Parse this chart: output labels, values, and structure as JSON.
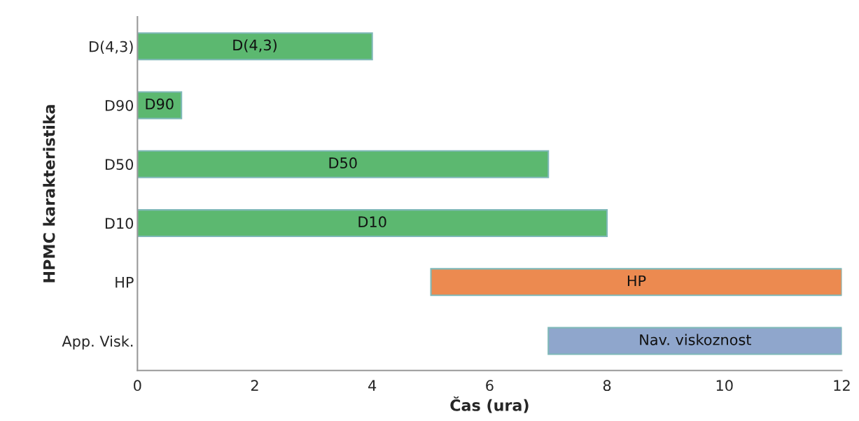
{
  "chart_data": {
    "type": "bar",
    "orientation": "horizontal",
    "xlabel": "Čas (ura)",
    "ylabel": "HPMC karakteristika",
    "categories": [
      "D(4,3)",
      "D90",
      "D50",
      "D10",
      "HP",
      "App. Visk."
    ],
    "base": [
      0,
      0,
      0,
      0,
      5,
      7
    ],
    "values": [
      4,
      0.75,
      7,
      8,
      7,
      5
    ],
    "value_labels": [
      "D(4,3)",
      "D90",
      "D50",
      "D10",
      "HP",
      "Nav. viskoznost"
    ],
    "colors": [
      "#5cb870",
      "#5cb870",
      "#5cb870",
      "#5cb870",
      "#ec8a50",
      "#8fa6cc"
    ],
    "xlim": [
      0,
      12
    ],
    "xticks": [
      0,
      2,
      4,
      6,
      8,
      10,
      12
    ],
    "grid": false
  }
}
